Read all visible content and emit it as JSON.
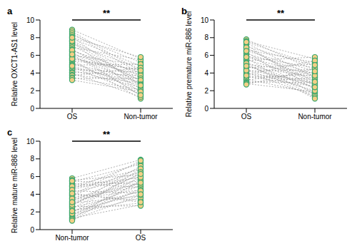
{
  "chart_data": [
    {
      "type": "line",
      "panel": "a",
      "y_label": "Relative OXCT1-AS1 level",
      "annotation": "**",
      "categories": [
        "OS",
        "Non-tumor"
      ],
      "ylim": [
        0,
        10
      ],
      "yticks": [
        0,
        2,
        4,
        6,
        8,
        10
      ],
      "color": "#3aa76d",
      "marker": "circle",
      "line_style": "dotted",
      "pairs": [
        [
          8.9,
          5.6
        ],
        [
          8.7,
          4.2
        ],
        [
          8.5,
          3.9
        ],
        [
          8.3,
          5.2
        ],
        [
          8.1,
          2.5
        ],
        [
          7.9,
          4.8
        ],
        [
          7.7,
          3.6
        ],
        [
          7.5,
          1.8
        ],
        [
          7.3,
          4.5
        ],
        [
          7.1,
          3.1
        ],
        [
          6.9,
          5.5
        ],
        [
          6.7,
          2.2
        ],
        [
          6.5,
          4.0
        ],
        [
          6.4,
          1.4
        ],
        [
          6.2,
          3.5
        ],
        [
          6.0,
          4.9
        ],
        [
          5.9,
          2.8
        ],
        [
          5.7,
          3.8
        ],
        [
          5.5,
          1.1
        ],
        [
          5.4,
          4.4
        ],
        [
          5.2,
          2.0
        ],
        [
          5.0,
          3.3
        ],
        [
          4.9,
          5.0
        ],
        [
          4.7,
          1.6
        ],
        [
          4.6,
          3.0
        ],
        [
          4.4,
          4.1
        ],
        [
          4.3,
          2.4
        ],
        [
          4.1,
          3.7
        ],
        [
          4.0,
          1.3
        ],
        [
          3.8,
          2.9
        ],
        [
          3.7,
          4.6
        ],
        [
          3.5,
          2.1
        ],
        [
          3.4,
          3.4
        ],
        [
          3.2,
          1.9
        ],
        [
          6.6,
          3.2
        ],
        [
          7.6,
          2.7
        ],
        [
          5.6,
          4.3
        ],
        [
          8.0,
          5.8
        ],
        [
          4.8,
          2.6
        ],
        [
          6.1,
          1.5
        ]
      ]
    },
    {
      "type": "line",
      "panel": "b",
      "y_label": "Relative premature miR-886 level",
      "annotation": "**",
      "categories": [
        "OS",
        "Non-tumor"
      ],
      "ylim": [
        0,
        10
      ],
      "yticks": [
        0,
        2,
        4,
        6,
        8,
        10
      ],
      "color": "#3aa76d",
      "marker": "circle",
      "line_style": "dotted",
      "pairs": [
        [
          7.8,
          4.3
        ],
        [
          7.6,
          5.6
        ],
        [
          7.4,
          3.5
        ],
        [
          7.2,
          2.1
        ],
        [
          7.0,
          4.8
        ],
        [
          6.8,
          3.0
        ],
        [
          6.6,
          5.2
        ],
        [
          6.4,
          1.5
        ],
        [
          6.2,
          3.9
        ],
        [
          6.0,
          2.6
        ],
        [
          5.9,
          4.6
        ],
        [
          5.7,
          1.2
        ],
        [
          5.5,
          3.3
        ],
        [
          5.4,
          5.8
        ],
        [
          5.2,
          2.3
        ],
        [
          5.0,
          4.0
        ],
        [
          4.9,
          1.8
        ],
        [
          4.7,
          3.6
        ],
        [
          4.6,
          5.0
        ],
        [
          4.4,
          2.8
        ],
        [
          4.2,
          4.4
        ],
        [
          4.1,
          1.4
        ],
        [
          3.9,
          3.2
        ],
        [
          3.8,
          5.4
        ],
        [
          3.6,
          2.5
        ],
        [
          3.5,
          3.8
        ],
        [
          3.3,
          1.7
        ],
        [
          3.2,
          4.1
        ],
        [
          3.0,
          2.9
        ],
        [
          2.9,
          3.5
        ],
        [
          2.8,
          1.9
        ],
        [
          2.7,
          4.5
        ],
        [
          6.9,
          2.7
        ],
        [
          5.8,
          3.7
        ],
        [
          4.3,
          2.0
        ],
        [
          7.5,
          4.9
        ],
        [
          5.1,
          1.1
        ],
        [
          3.7,
          3.0
        ],
        [
          6.5,
          4.2
        ],
        [
          4.8,
          2.4
        ]
      ]
    },
    {
      "type": "line",
      "panel": "c",
      "y_label": "Relative mature miR-886 level",
      "annotation": "**",
      "categories": [
        "Non-tumor",
        "OS"
      ],
      "ylim": [
        0,
        10
      ],
      "yticks": [
        0,
        2,
        4,
        6,
        8,
        10
      ],
      "color": "#3aa76d",
      "marker": "circle",
      "line_style": "dotted",
      "pairs": [
        [
          5.8,
          7.9
        ],
        [
          5.6,
          6.2
        ],
        [
          5.4,
          7.4
        ],
        [
          5.2,
          4.8
        ],
        [
          5.0,
          6.8
        ],
        [
          4.8,
          5.5
        ],
        [
          4.6,
          7.6
        ],
        [
          4.4,
          4.1
        ],
        [
          4.2,
          6.0
        ],
        [
          4.0,
          3.3
        ],
        [
          3.8,
          7.0
        ],
        [
          3.6,
          5.2
        ],
        [
          3.4,
          4.5
        ],
        [
          3.2,
          6.6
        ],
        [
          3.0,
          3.8
        ],
        [
          2.9,
          5.8
        ],
        [
          2.7,
          7.2
        ],
        [
          2.5,
          4.3
        ],
        [
          2.4,
          6.4
        ],
        [
          2.2,
          3.0
        ],
        [
          2.0,
          5.0
        ],
        [
          1.9,
          6.9
        ],
        [
          1.7,
          3.6
        ],
        [
          1.6,
          5.4
        ],
        [
          1.4,
          4.6
        ],
        [
          1.3,
          2.8
        ],
        [
          1.2,
          6.1
        ],
        [
          1.1,
          3.9
        ],
        [
          1.0,
          5.6
        ],
        [
          3.9,
          7.8
        ],
        [
          4.9,
          5.9
        ],
        [
          2.6,
          2.7
        ],
        [
          3.5,
          4.9
        ],
        [
          4.5,
          6.5
        ],
        [
          1.8,
          4.4
        ],
        [
          2.8,
          6.3
        ],
        [
          5.5,
          5.1
        ],
        [
          4.1,
          3.1
        ],
        [
          3.1,
          5.3
        ],
        [
          2.1,
          4.0
        ]
      ]
    }
  ]
}
